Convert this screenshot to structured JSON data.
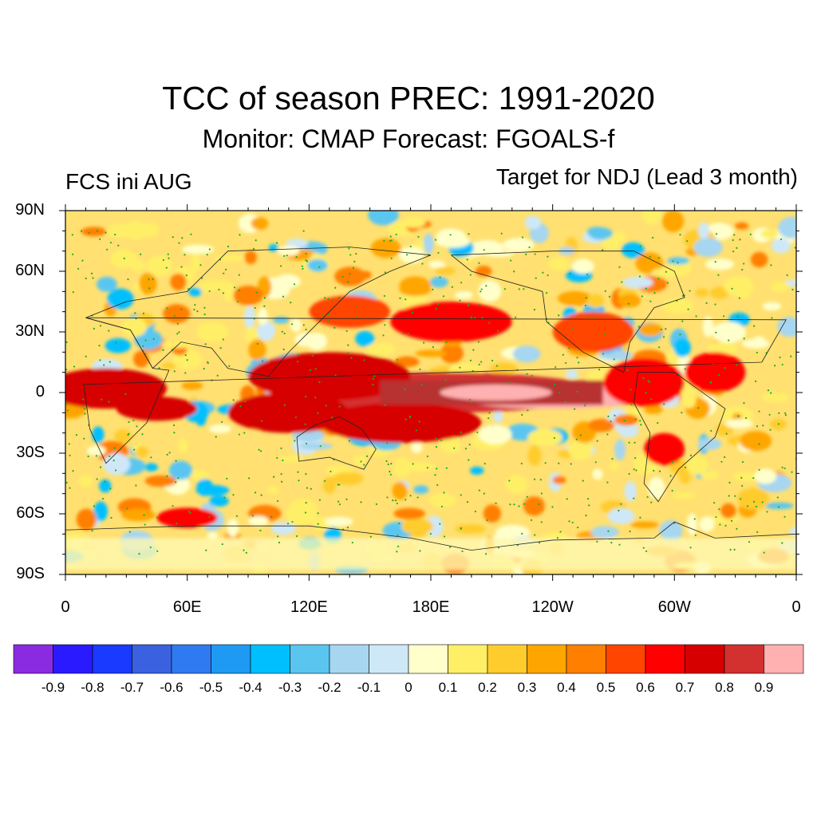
{
  "figure": {
    "title": "TCC of season PREC: 1991-2020",
    "subtitle": "Monitor: CMAP   Forecast: FGOALS-f",
    "left_label": "FCS ini AUG",
    "right_label": "Target for NDJ (Lead 3 month)"
  },
  "map": {
    "projection": "cylindrical-equidistant",
    "lon_range": [
      0,
      360
    ],
    "lat_range": [
      -90,
      90
    ],
    "y_ticks": [
      {
        "lat": 90,
        "label": "90N"
      },
      {
        "lat": 60,
        "label": "60N"
      },
      {
        "lat": 30,
        "label": "30N"
      },
      {
        "lat": 0,
        "label": "0"
      },
      {
        "lat": -30,
        "label": "30S"
      },
      {
        "lat": -60,
        "label": "60S"
      },
      {
        "lat": -90,
        "label": "90S"
      }
    ],
    "x_ticks": [
      {
        "lon": 0,
        "label": "0"
      },
      {
        "lon": 60,
        "label": "60E"
      },
      {
        "lon": 120,
        "label": "120E"
      },
      {
        "lon": 180,
        "label": "180E"
      },
      {
        "lon": 240,
        "label": "120W"
      },
      {
        "lon": 300,
        "label": "60W"
      },
      {
        "lon": 360,
        "label": "0"
      }
    ],
    "stippling": "green dots mark significant correlation"
  },
  "colorbar": {
    "labels": [
      "-0.9",
      "-0.8",
      "-0.7",
      "-0.6",
      "-0.5",
      "-0.4",
      "-0.3",
      "-0.2",
      "-0.1",
      "0",
      "0.1",
      "0.2",
      "0.3",
      "0.4",
      "0.5",
      "0.6",
      "0.7",
      "0.8",
      "0.9"
    ],
    "colors": [
      "#8a2be2",
      "#2a1aff",
      "#1a3aff",
      "#3a62e0",
      "#2f7af0",
      "#1e9af5",
      "#00bfff",
      "#5ac6f0",
      "#a6d6f0",
      "#cfe8f7",
      "#ffffcc",
      "#ffef66",
      "#ffcc2e",
      "#ffa500",
      "#ff7f00",
      "#ff4500",
      "#ff0000",
      "#d60000",
      "#d33030",
      "#ffb0b0"
    ]
  }
}
